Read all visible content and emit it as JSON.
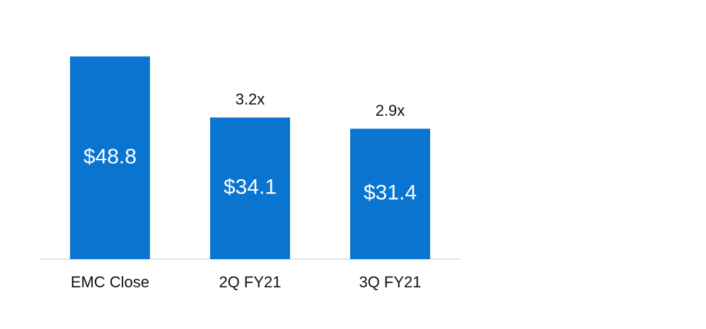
{
  "chart_data": {
    "type": "bar",
    "categories": [
      "EMC Close",
      "2Q FY21",
      "3Q FY21"
    ],
    "values": [
      48.8,
      34.1,
      31.4
    ],
    "value_labels": [
      "$48.8",
      "$34.1",
      "$31.4"
    ],
    "annotations": [
      null,
      "3.2x",
      "2.9x"
    ],
    "color": "#0a74d1",
    "ylim": [
      0,
      55
    ]
  }
}
